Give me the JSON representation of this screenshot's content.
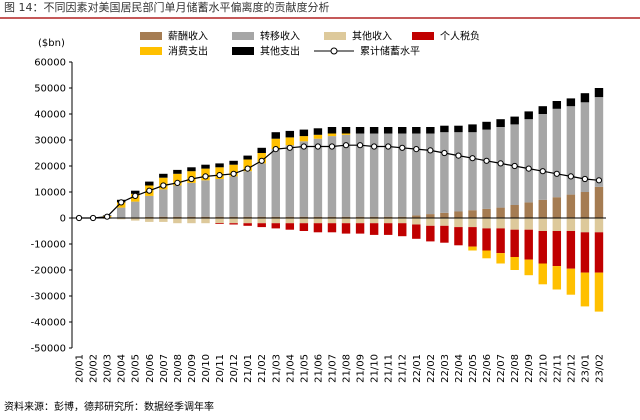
{
  "title": "图 14：不同因素对美国居民部门单月储蓄水平偏离度的贡献度分析",
  "source": "资料来源：彭博，德邦研究所：数据经季调年率",
  "chart_data": {
    "type": "stacked-bar-line",
    "y_label": "($bn)",
    "categories": [
      "20/01",
      "20/02",
      "20/03",
      "20/04",
      "20/05",
      "20/06",
      "20/07",
      "20/08",
      "20/09",
      "20/10",
      "20/11",
      "20/12",
      "21/01",
      "21/02",
      "21/03",
      "21/04",
      "21/05",
      "21/06",
      "21/07",
      "21/08",
      "21/09",
      "21/10",
      "21/11",
      "21/12",
      "22/01",
      "22/02",
      "22/03",
      "22/04",
      "22/05",
      "22/06",
      "22/07",
      "22/08",
      "22/09",
      "22/10",
      "22/11",
      "22/12",
      "23/01",
      "23/02"
    ],
    "series": [
      {
        "name": "薪酬收入",
        "color": "#a57c52",
        "values": [
          0,
          0,
          0,
          200,
          300,
          400,
          500,
          500,
          500,
          500,
          500,
          500,
          500,
          500,
          500,
          500,
          500,
          500,
          500,
          500,
          500,
          500,
          500,
          500,
          1000,
          1500,
          2000,
          2500,
          3000,
          3500,
          4000,
          5000,
          6000,
          7000,
          8000,
          9000,
          10000,
          12000
        ]
      },
      {
        "name": "转移收入",
        "color": "#a6a6a6",
        "values": [
          0,
          0,
          300,
          3800,
          6000,
          8100,
          10500,
          12000,
          13000,
          14000,
          14500,
          15500,
          17500,
          20500,
          26000,
          27500,
          29000,
          30000,
          31000,
          31500,
          32000,
          32000,
          32000,
          32000,
          31500,
          31000,
          31000,
          30500,
          30000,
          30500,
          31000,
          31000,
          32000,
          33000,
          34000,
          34000,
          34500,
          34500
        ]
      },
      {
        "name": "其他收入",
        "color": "#ddc99b",
        "values": [
          0,
          0,
          -300,
          -500,
          -1000,
          -1500,
          -1500,
          -2000,
          -2000,
          -2000,
          -2000,
          -2000,
          -2000,
          -2000,
          -2000,
          -2000,
          -2000,
          -2000,
          -2000,
          -2000,
          -2000,
          -2000,
          -2000,
          -2000,
          -2500,
          -3000,
          -3000,
          -3500,
          -3500,
          -4000,
          -4000,
          -4500,
          -4500,
          -5000,
          -5000,
          -5000,
          -5500,
          -5500
        ]
      },
      {
        "name": "个人税负",
        "color": "#c00000",
        "values": [
          0,
          0,
          0,
          0,
          0,
          0,
          0,
          0,
          0,
          0,
          -300,
          -500,
          -1000,
          -1500,
          -2000,
          -2500,
          -3000,
          -3500,
          -3500,
          -4000,
          -4000,
          -4500,
          -4500,
          -5000,
          -5500,
          -6000,
          -6500,
          -7000,
          -7500,
          -8500,
          -9500,
          -10500,
          -11500,
          -12500,
          -13500,
          -14500,
          -15500,
          -15500
        ]
      },
      {
        "name": "消费支出",
        "color": "#ffc000",
        "values": [
          0,
          0,
          500,
          2000,
          3000,
          4000,
          4500,
          4500,
          4500,
          4500,
          4500,
          4500,
          4500,
          4000,
          4000,
          3000,
          2000,
          1500,
          1000,
          500,
          0,
          0,
          0,
          0,
          0,
          0,
          0,
          0,
          -1500,
          -3000,
          -4000,
          -5000,
          -6000,
          -8000,
          -9000,
          -10000,
          -13000,
          -15000
        ]
      },
      {
        "name": "其他支出",
        "color": "#000000",
        "values": [
          0,
          0,
          200,
          1000,
          1200,
          1500,
          1500,
          1500,
          1500,
          1500,
          1500,
          1500,
          1500,
          2000,
          2500,
          2500,
          2500,
          2500,
          2500,
          2500,
          2500,
          2500,
          2500,
          2500,
          2500,
          2500,
          2500,
          2500,
          3000,
          3000,
          3000,
          3000,
          3000,
          3000,
          3000,
          3000,
          3500,
          3500
        ]
      }
    ],
    "line": {
      "name": "累计储蓄水平",
      "color": "#000000",
      "values": [
        0,
        0,
        500,
        6000,
        8500,
        10500,
        12500,
        13500,
        15000,
        16000,
        16500,
        17000,
        19000,
        22000,
        26500,
        27000,
        27500,
        27500,
        27500,
        28000,
        28000,
        27500,
        27500,
        27000,
        26500,
        26000,
        25000,
        24000,
        23000,
        22000,
        21000,
        20000,
        19000,
        18000,
        17000,
        16000,
        15000,
        14500
      ]
    },
    "ylim": [
      -50000,
      60000
    ],
    "yticks": [
      -50000,
      -40000,
      -30000,
      -20000,
      -10000,
      0,
      10000,
      20000,
      30000,
      40000,
      50000,
      60000
    ]
  }
}
